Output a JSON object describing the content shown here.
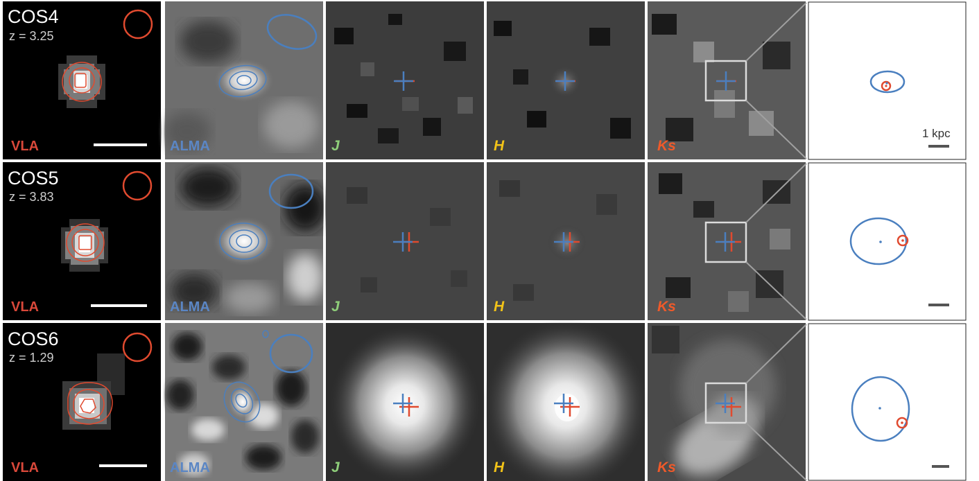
{
  "figure": {
    "colors": {
      "vla": "#e04a2f",
      "alma": "#4a7fbf",
      "vla_label": "#d9483a",
      "alma_label": "#5b86c4",
      "j_label": "#8fcf7a",
      "h_label": "#f2c318",
      "ks_label": "#f05a2a",
      "scale_bar": "#555555"
    },
    "band_labels": {
      "vla": "VLA",
      "alma": "ALMA",
      "j": "J",
      "h": "H",
      "ks": "Ks"
    },
    "scale_label": "1 kpc",
    "sources": [
      {
        "id": "cos4",
        "name": "COS4",
        "redshift": "z = 3.25"
      },
      {
        "id": "cos5",
        "name": "COS5",
        "redshift": "z = 3.83"
      },
      {
        "id": "cos6",
        "name": "COS6",
        "redshift": "z = 1.29"
      }
    ]
  }
}
